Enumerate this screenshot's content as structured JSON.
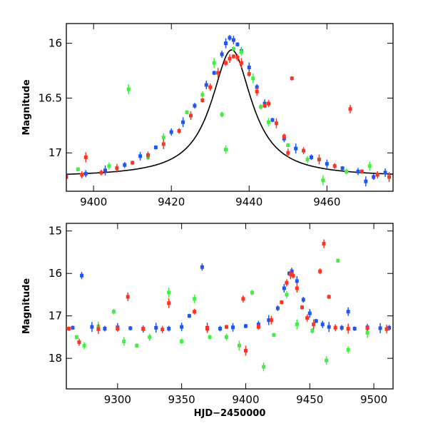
{
  "colors": {
    "series_a": "#2255ee",
    "series_b": "#44ee44",
    "series_c": "#ff3322",
    "model": "#000000"
  },
  "chart_data": [
    {
      "type": "scatter",
      "title": "",
      "xlabel": "",
      "ylabel": "Magnitude",
      "xlim": [
        9393,
        9477
      ],
      "ylim": [
        17.35,
        15.82
      ],
      "y_inverted": true,
      "xticks": [
        9400,
        9420,
        9440,
        9460
      ],
      "yticks": [
        16,
        16.5,
        17
      ],
      "ytick_labels": [
        "16",
        "16.5",
        "17"
      ],
      "xtick_labels": [
        "9400",
        "9420",
        "9440",
        "9460"
      ],
      "model_curve": {
        "name": "model",
        "base": 17.22,
        "peak_time": 9435.5,
        "peak_mag": 16.06,
        "timescale": 6.3
      },
      "series": [
        {
          "name": "series_a",
          "color_key": "series_a",
          "points": [
            [
              9393,
              17.21
            ],
            [
              9398,
              17.19
            ],
            [
              9403,
              17.16
            ],
            [
              9408,
              17.11
            ],
            [
              9412,
              17.03
            ],
            [
              9416,
              16.95
            ],
            [
              9420,
              16.81
            ],
            [
              9423,
              16.72
            ],
            [
              9426,
              16.57
            ],
            [
              9429,
              16.38
            ],
            [
              9431,
              16.27
            ],
            [
              9433,
              16.1
            ],
            [
              9434,
              16.0
            ],
            [
              9435,
              15.95
            ],
            [
              9436,
              15.97
            ],
            [
              9437,
              16.01
            ],
            [
              9438,
              16.07
            ],
            [
              9440,
              16.22
            ],
            [
              9442,
              16.4
            ],
            [
              9444,
              16.55
            ],
            [
              9446,
              16.7
            ],
            [
              9449,
              16.87
            ],
            [
              9452,
              16.96
            ],
            [
              9456,
              17.04
            ],
            [
              9460,
              17.1
            ],
            [
              9464,
              17.14
            ],
            [
              9468,
              17.17
            ],
            [
              9470,
              17.26
            ],
            [
              9472,
              17.22
            ],
            [
              9475,
              17.18
            ]
          ]
        },
        {
          "name": "series_b",
          "color_key": "series_b",
          "points": [
            [
              9396,
              17.15
            ],
            [
              9404,
              17.12
            ],
            [
              9409,
              16.42
            ],
            [
              9414,
              17.04
            ],
            [
              9418,
              16.86
            ],
            [
              9424,
              16.63
            ],
            [
              9428,
              16.47
            ],
            [
              9431,
              16.18
            ],
            [
              9433,
              16.65
            ],
            [
              9434,
              16.97
            ],
            [
              9436,
              16.05
            ],
            [
              9438,
              16.08
            ],
            [
              9441,
              16.32
            ],
            [
              9443,
              16.58
            ],
            [
              9445,
              16.72
            ],
            [
              9450,
              16.93
            ],
            [
              9455,
              17.06
            ],
            [
              9459,
              17.25
            ],
            [
              9465,
              17.17
            ],
            [
              9471,
              17.12
            ]
          ]
        },
        {
          "name": "series_c",
          "color_key": "series_c",
          "points": [
            [
              9393,
              17.22
            ],
            [
              9397,
              17.2
            ],
            [
              9398,
              17.04
            ],
            [
              9402,
              17.18
            ],
            [
              9406,
              17.14
            ],
            [
              9410,
              17.09
            ],
            [
              9414,
              17.02
            ],
            [
              9418,
              16.92
            ],
            [
              9422,
              16.8
            ],
            [
              9425,
              16.66
            ],
            [
              9428,
              16.52
            ],
            [
              9430,
              16.4
            ],
            [
              9432,
              16.27
            ],
            [
              9434,
              16.18
            ],
            [
              9435,
              16.14
            ],
            [
              9436,
              16.12
            ],
            [
              9437,
              16.13
            ],
            [
              9438,
              16.18
            ],
            [
              9440,
              16.28
            ],
            [
              9442,
              16.44
            ],
            [
              9444,
              16.57
            ],
            [
              9445,
              16.55
            ],
            [
              9447,
              16.73
            ],
            [
              9449,
              16.85
            ],
            [
              9450,
              17.0
            ],
            [
              9451,
              16.32
            ],
            [
              9454,
              16.98
            ],
            [
              9458,
              17.06
            ],
            [
              9462,
              17.12
            ],
            [
              9466,
              16.6
            ],
            [
              9469,
              17.17
            ],
            [
              9473,
              17.2
            ],
            [
              9476,
              17.22
            ]
          ]
        }
      ]
    },
    {
      "type": "scatter",
      "title": "",
      "xlabel": "HJD−2450000",
      "ylabel": "Magnitude",
      "xlim": [
        9260,
        9515
      ],
      "ylim": [
        18.72,
        14.82
      ],
      "y_inverted": true,
      "xticks": [
        9300,
        9350,
        9400,
        9450,
        9500
      ],
      "yticks": [
        15,
        16,
        17,
        18
      ],
      "ytick_labels": [
        "15",
        "16",
        "17",
        "18"
      ],
      "xtick_labels": [
        "9300",
        "9350",
        "9400",
        "9450",
        "9500"
      ],
      "series": [
        {
          "name": "series_a",
          "color_key": "series_a",
          "points": [
            [
              9265,
              17.28
            ],
            [
              9272,
              16.05
            ],
            [
              9280,
              17.26
            ],
            [
              9290,
              17.3
            ],
            [
              9300,
              17.27
            ],
            [
              9310,
              17.29
            ],
            [
              9320,
              17.31
            ],
            [
              9330,
              17.28
            ],
            [
              9340,
              17.3
            ],
            [
              9350,
              17.26
            ],
            [
              9356,
              17.0
            ],
            [
              9366,
              15.85
            ],
            [
              9370,
              17.28
            ],
            [
              9380,
              17.3
            ],
            [
              9390,
              17.27
            ],
            [
              9400,
              17.24
            ],
            [
              9410,
              17.2
            ],
            [
              9418,
              17.1
            ],
            [
              9425,
              16.82
            ],
            [
              9430,
              16.35
            ],
            [
              9434,
              16.0
            ],
            [
              9436,
              15.95
            ],
            [
              9440,
              16.18
            ],
            [
              9445,
              16.62
            ],
            [
              9450,
              16.94
            ],
            [
              9455,
              17.12
            ],
            [
              9460,
              17.2
            ],
            [
              9465,
              17.26
            ],
            [
              9475,
              17.28
            ],
            [
              9480,
              16.9
            ],
            [
              9485,
              17.3
            ],
            [
              9495,
              17.27
            ],
            [
              9505,
              17.29
            ],
            [
              9512,
              17.28
            ]
          ]
        },
        {
          "name": "series_b",
          "color_key": "series_b",
          "points": [
            [
              9268,
              17.5
            ],
            [
              9274,
              17.7
            ],
            [
              9285,
              17.25
            ],
            [
              9297,
              16.9
            ],
            [
              9305,
              17.6
            ],
            [
              9315,
              17.7
            ],
            [
              9325,
              17.5
            ],
            [
              9340,
              16.45
            ],
            [
              9350,
              17.6
            ],
            [
              9360,
              16.6
            ],
            [
              9372,
              17.5
            ],
            [
              9385,
              17.5
            ],
            [
              9395,
              17.7
            ],
            [
              9405,
              16.45
            ],
            [
              9414,
              18.2
            ],
            [
              9422,
              17.45
            ],
            [
              9432,
              16.5
            ],
            [
              9440,
              17.2
            ],
            [
              9452,
              17.35
            ],
            [
              9463,
              18.05
            ],
            [
              9472,
              15.7
            ],
            [
              9480,
              17.8
            ],
            [
              9495,
              17.4
            ]
          ]
        },
        {
          "name": "series_c",
          "color_key": "series_c",
          "points": [
            [
              9262,
              17.3
            ],
            [
              9270,
              17.62
            ],
            [
              9285,
              17.31
            ],
            [
              9300,
              17.3
            ],
            [
              9308,
              16.55
            ],
            [
              9320,
              17.3
            ],
            [
              9335,
              17.32
            ],
            [
              9340,
              16.7
            ],
            [
              9360,
              16.9
            ],
            [
              9370,
              17.3
            ],
            [
              9385,
              17.26
            ],
            [
              9398,
              16.6
            ],
            [
              9400,
              17.82
            ],
            [
              9410,
              17.26
            ],
            [
              9420,
              17.1
            ],
            [
              9428,
              16.68
            ],
            [
              9432,
              16.22
            ],
            [
              9435,
              16.02
            ],
            [
              9437,
              16.05
            ],
            [
              9440,
              16.35
            ],
            [
              9444,
              16.8
            ],
            [
              9448,
              17.05
            ],
            [
              9453,
              17.2
            ],
            [
              9458,
              15.95
            ],
            [
              9461,
              15.3
            ],
            [
              9465,
              16.55
            ],
            [
              9470,
              17.28
            ],
            [
              9480,
              17.3
            ],
            [
              9495,
              17.29
            ],
            [
              9510,
              17.31
            ]
          ]
        }
      ]
    }
  ]
}
